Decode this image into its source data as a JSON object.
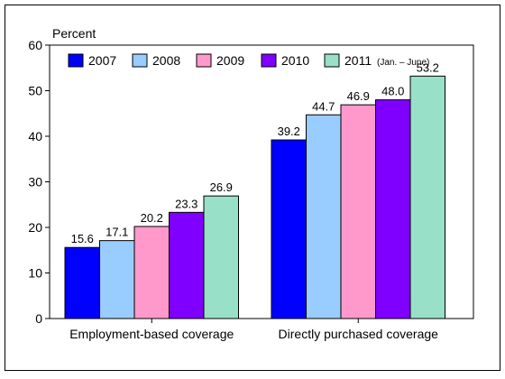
{
  "chart_data": {
    "type": "bar",
    "ylabel": "Percent",
    "ylim": [
      0,
      60
    ],
    "yticks": [
      "0",
      "10",
      "20",
      "30",
      "40",
      "50",
      "60"
    ],
    "categories": [
      "Employment-based coverage",
      "Directly purchased coverage"
    ],
    "series": [
      {
        "name": "2007",
        "note": "",
        "color": "#0000ff",
        "values": [
          15.6,
          39.2
        ],
        "labels": [
          "15.6",
          "39.2"
        ]
      },
      {
        "name": "2008",
        "note": "",
        "color": "#99ccff",
        "values": [
          17.1,
          44.7
        ],
        "labels": [
          "17.1",
          "44.7"
        ]
      },
      {
        "name": "2009",
        "note": "",
        "color": "#ff99cc",
        "values": [
          20.2,
          46.9
        ],
        "labels": [
          "20.2",
          "46.9"
        ]
      },
      {
        "name": "2010",
        "note": "",
        "color": "#7f00ff",
        "values": [
          23.3,
          48.0
        ],
        "labels": [
          "23.3",
          "48.0"
        ]
      },
      {
        "name": "2011",
        "note": "(Jan. – June)",
        "color": "#99e0c8",
        "values": [
          26.9,
          53.2
        ],
        "labels": [
          "26.9",
          "53.2"
        ]
      }
    ],
    "grid": false,
    "legend_position": "top-left inside plot"
  }
}
